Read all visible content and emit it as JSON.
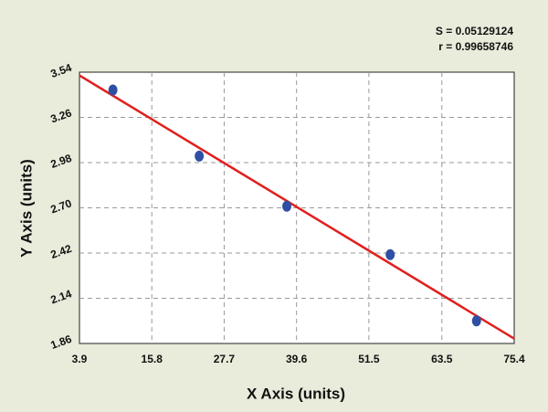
{
  "chart_data": {
    "type": "scatter",
    "annotations": [
      "S = 0.05129124",
      "r = 0.99658746"
    ],
    "x_label": "X Axis (units)",
    "y_label": "Y Axis (units)",
    "series": [
      {
        "color": "#2e4fa3",
        "x": [
          9.4,
          23.6,
          38.0,
          55.0,
          69.2
        ],
        "values": [
          3.43,
          3.02,
          2.71,
          2.41,
          2.0
        ]
      }
    ],
    "fit_line": {
      "color": "#e0201e",
      "x": [
        3.9,
        75.4
      ],
      "y": [
        3.52,
        1.89
      ]
    },
    "xlim": [
      3.9,
      75.4
    ],
    "xticks": [
      3.9,
      15.8,
      27.7,
      39.6,
      51.5,
      63.5,
      75.4
    ],
    "ylim": [
      1.86,
      3.54
    ],
    "yticks": [
      1.86,
      2.14,
      2.42,
      {
        "value": 2.7,
        "label": "2.70"
      },
      2.98,
      3.26,
      3.54
    ],
    "grid": true
  }
}
